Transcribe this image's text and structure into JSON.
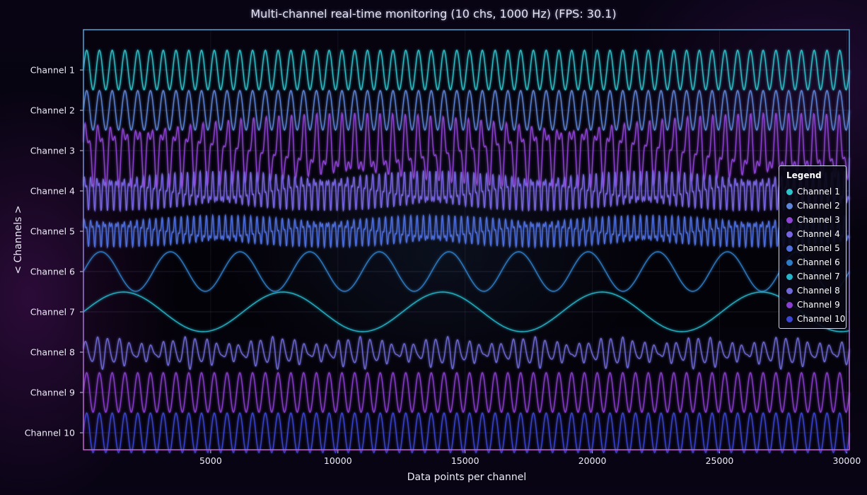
{
  "title": "Multi-channel real-time monitoring (10 chs, 1000 Hz) (FPS: 30.1)",
  "chart_data": {
    "type": "line",
    "title": "Multi-channel real-time monitoring (10 chs, 1000 Hz) (FPS: 30.1)",
    "xlabel": "Data points per channel",
    "ylabel": "< Channels >",
    "xlim": [
      0,
      30100
    ],
    "xticks": [
      5000,
      10000,
      15000,
      20000,
      25000,
      30000
    ],
    "xtick_labels": [
      "5000",
      "10000",
      "15000",
      "20000",
      "25000",
      "30000"
    ],
    "grid": true,
    "legend": {
      "title": "Legend",
      "position": "right"
    },
    "series": [
      {
        "name": "Channel 1",
        "color": "#2ec4cc",
        "waveform": "sine",
        "cycles": 60,
        "amplitude": 0.5,
        "offset": 0
      },
      {
        "name": "Channel 2",
        "color": "#5e86d8",
        "waveform": "sine",
        "cycles": 60,
        "amplitude": 0.5,
        "offset": 0
      },
      {
        "name": "Channel 3",
        "color": "#8d45d2",
        "waveform": "sine-mix",
        "cycles": 60,
        "amplitude": 0.95,
        "offset": 0
      },
      {
        "name": "Channel 4",
        "color": "#7766e0",
        "waveform": "sine-mix",
        "cycles": 120,
        "amplitude": 0.5,
        "offset": 0
      },
      {
        "name": "Channel 5",
        "color": "#4f6fdc",
        "waveform": "sine-mix",
        "cycles": 120,
        "amplitude": 0.4,
        "offset": 0
      },
      {
        "name": "Channel 6",
        "color": "#2e7cc4",
        "waveform": "sine",
        "cycles": 11,
        "amplitude": 0.5,
        "offset": 0
      },
      {
        "name": "Channel 7",
        "color": "#25b4c8",
        "waveform": "sine",
        "cycles": 4.8,
        "amplitude": 0.5,
        "offset": 0
      },
      {
        "name": "Channel 8",
        "color": "#6f6ad6",
        "waveform": "bursts",
        "cycles": 70,
        "amplitude": 0.35,
        "offset": 0
      },
      {
        "name": "Channel 9",
        "color": "#8a3fd0",
        "waveform": "sine",
        "cycles": 60,
        "amplitude": 0.5,
        "offset": 0
      },
      {
        "name": "Channel 10",
        "color": "#3b46d4",
        "waveform": "sine",
        "cycles": 60,
        "amplitude": 0.5,
        "offset": 0
      }
    ]
  }
}
